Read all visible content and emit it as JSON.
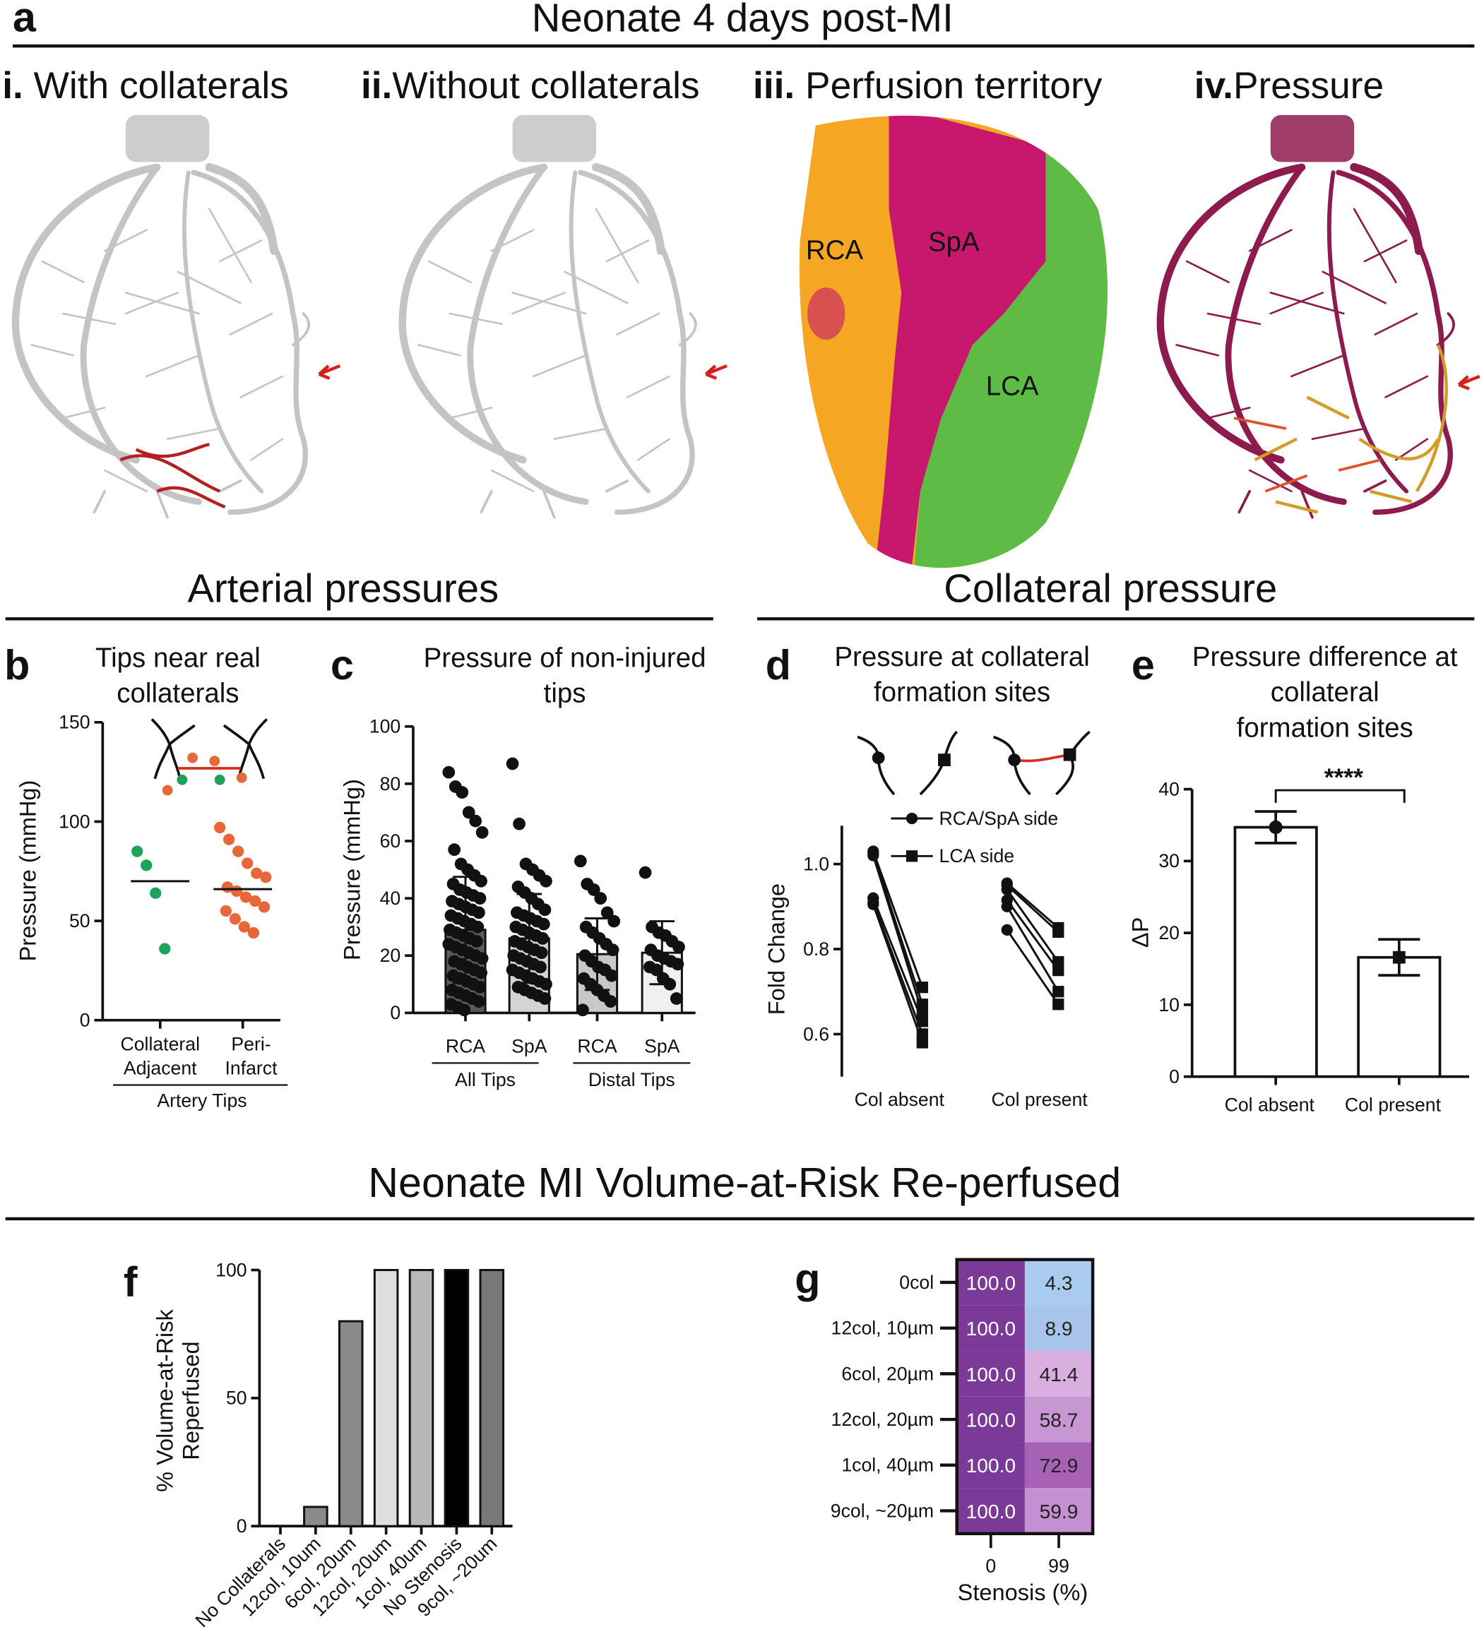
{
  "panel_labels": [
    "a",
    "b",
    "c",
    "d",
    "e",
    "f",
    "g"
  ],
  "headings": [
    "Neonate 4 days post-MI",
    "Arterial pressures",
    "Collateral pressure",
    "Neonate MI Volume-at-Risk Re-perfused"
  ],
  "panel_a": {
    "subtitles": [
      {
        "numeral": "i.",
        "text": "With collaterals"
      },
      {
        "numeral": "ii.",
        "text": "Without collaterals"
      },
      {
        "numeral": "iii.",
        "text": "Perfusion territory"
      },
      {
        "numeral": "iv.",
        "text": "Pressure"
      }
    ],
    "territory_labels": [
      "RCA",
      "SpA",
      "LCA"
    ]
  },
  "chart_data": [
    {
      "type": "dot",
      "title": [
        "Tips near real",
        "collaterals"
      ],
      "y_label": "Pressure (mmHg)",
      "categories": [
        [
          "Collateral",
          "Adjacent"
        ],
        [
          "Peri-",
          "Infarct"
        ]
      ],
      "group_label": "Artery Tips",
      "ylim": [
        0,
        150
      ],
      "yticks": [
        0,
        50,
        100,
        150
      ],
      "groups": [
        {
          "color": "#1fa35c",
          "values": [
            85,
            78,
            64,
            36
          ],
          "mean": 70
        },
        {
          "color": "#e8673a",
          "values": [
            97,
            91,
            85,
            79,
            74,
            72,
            67,
            65,
            62,
            60,
            57,
            55,
            51,
            47,
            44
          ],
          "mean": 66
        }
      ]
    },
    {
      "type": "bar_scatter",
      "title": [
        "Pressure of non-injured",
        "tips"
      ],
      "y_label": "Pressure (mmHg)",
      "ylim": [
        0,
        100
      ],
      "yticks": [
        0,
        20,
        40,
        60,
        80,
        100
      ],
      "groups": [
        {
          "name": "All Tips",
          "categories": [
            "RCA",
            "SpA"
          ],
          "values": [
            29,
            26
          ],
          "errors": [
            18.5,
            15.5
          ],
          "colors": [
            "#5a5a5a",
            "#d4d4d4"
          ],
          "points": [
            [
              84,
              79,
              77,
              70,
              67,
              63,
              57,
              52,
              50,
              48,
              46,
              45,
              43,
              42,
              41,
              40,
              39,
              38,
              37,
              36,
              35,
              34,
              33,
              32,
              31,
              30,
              29,
              28,
              27,
              26,
              25,
              24,
              23,
              22,
              21,
              20,
              19,
              18,
              17,
              16,
              15,
              14,
              13,
              12,
              11,
              10,
              9,
              8,
              7,
              6,
              5,
              4,
              3,
              2,
              1
            ],
            [
              87,
              66,
              52,
              50,
              48,
              46,
              44,
              42,
              40,
              38,
              36,
              35,
              34,
              33,
              32,
              31,
              30,
              29,
              28,
              27,
              26,
              25,
              24,
              23,
              22,
              21,
              20,
              19,
              18,
              17,
              16,
              15,
              14,
              13,
              12,
              11,
              10,
              9,
              8,
              7,
              6,
              5
            ]
          ]
        },
        {
          "name": "Distal Tips",
          "categories": [
            "RCA",
            "SpA"
          ],
          "values": [
            20.5,
            21
          ],
          "errors": [
            12.5,
            11
          ],
          "colors": [
            "#c8c8c8",
            "#f0f0f0"
          ],
          "points": [
            [
              53,
              45,
              43,
              40,
              35,
              32,
              30,
              28,
              26,
              24,
              22,
              20,
              18,
              16,
              15,
              13,
              12,
              10,
              8,
              6,
              4,
              1
            ],
            [
              49,
              30,
              28,
              27,
              25,
              23,
              22,
              20,
              19,
              18,
              17,
              16,
              15,
              12,
              10,
              5
            ]
          ]
        }
      ]
    },
    {
      "type": "paired",
      "title": [
        "Pressure at collateral",
        "formation sites"
      ],
      "y_label": "Fold Change",
      "ylim": [
        0.5,
        1.09
      ],
      "yticks": [
        0.6,
        0.8,
        {
          "value": 1,
          "label": "1.0"
        }
      ],
      "categories": [
        "Col absent",
        "Col present"
      ],
      "series": [
        {
          "name": "RCA/SpA side",
          "marker": "circle",
          "values": [
            [
              1.03,
              1.025,
              1.02,
              0.92,
              0.91,
              0.905
            ],
            [
              0.955,
              0.95,
              0.94,
              0.915,
              0.9,
              0.845
            ]
          ]
        },
        {
          "name": "LCA side",
          "marker": "square",
          "values": [
            [
              0.71,
              0.67,
              0.65,
              0.63,
              0.6,
              0.58
            ],
            [
              0.85,
              0.84,
              0.77,
              0.75,
              0.7,
              0.67
            ]
          ]
        }
      ]
    },
    {
      "type": "bar_error",
      "title": [
        "Pressure difference at",
        "collateral",
        "formation sites"
      ],
      "y_label": "ΔP",
      "ylim": [
        0,
        40
      ],
      "yticks": [
        0,
        10,
        20,
        30,
        40
      ],
      "categories": [
        "Col absent",
        "Col present"
      ],
      "values": [
        34.7,
        16.6
      ],
      "errors": [
        2.2,
        2.5
      ],
      "markers": [
        "circle",
        "square"
      ],
      "annotation": "****"
    },
    {
      "type": "bar",
      "y_label": [
        "% Volume-at-Risk",
        "Reperfused"
      ],
      "ylim": [
        0,
        100
      ],
      "yticks": [
        0,
        50,
        100
      ],
      "categories": [
        "No Collaterals",
        "12col, 10um",
        "6col, 20um",
        "12col, 20um",
        "1col, 40um",
        "No Stenosis",
        "9col, ~20um"
      ],
      "values": [
        0,
        7.5,
        80,
        100,
        100,
        100,
        100
      ],
      "colors": [
        "#8a8a8a",
        "#8a8a8a",
        "#8a8a8a",
        "#dedede",
        "#b8b8b8",
        "#000000",
        "#787878"
      ]
    },
    {
      "type": "heatmap",
      "x_label": "Stenosis (%)",
      "columns": [
        "0",
        "99"
      ],
      "rows": [
        "0col",
        "12col, 10µm",
        "6col, 20µm",
        "12col, 20µm",
        "1col, 40µm",
        "9col, ~20µm"
      ],
      "values": [
        [
          100,
          4.3
        ],
        [
          100,
          8.9
        ],
        [
          100,
          41.4
        ],
        [
          100,
          58.7
        ],
        [
          100,
          72.9
        ],
        [
          100,
          59.9
        ]
      ],
      "value_labels": [
        [
          "100.0",
          "4.3"
        ],
        [
          "100.0",
          "8.9"
        ],
        [
          "100.0",
          "41.4"
        ],
        [
          "100.0",
          "58.7"
        ],
        [
          "100.0",
          "72.9"
        ],
        [
          "100.0",
          "59.9"
        ]
      ],
      "colors": [
        [
          "#7b3a98",
          "#a9cbee"
        ],
        [
          "#7b3a98",
          "#a8c4ea"
        ],
        [
          "#7b3a98",
          "#d9afe1"
        ],
        [
          "#7b3a98",
          "#c896d3"
        ],
        [
          "#7b3a98",
          "#a862b5"
        ],
        [
          "#7b3a98",
          "#c590d1"
        ]
      ]
    }
  ]
}
